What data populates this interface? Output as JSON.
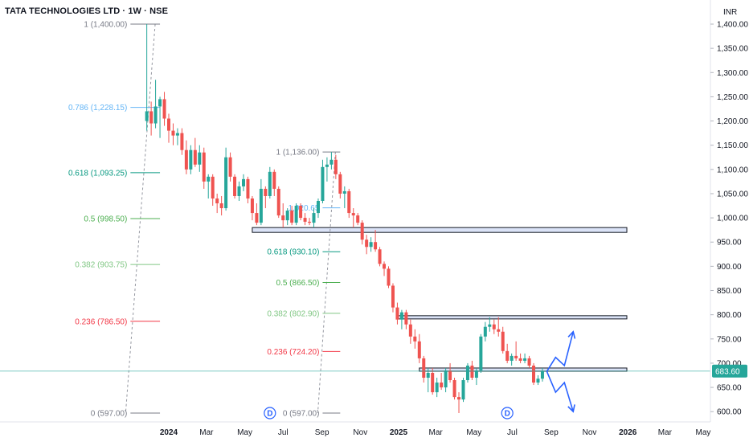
{
  "header": {
    "title": "TATA TECHNOLOGIES LTD · 1W · NSE",
    "currency": "INR"
  },
  "colors": {
    "up": "#26a69a",
    "down": "#ef5350",
    "fib_0786": "#64b5f6",
    "fib_0618": "#089981",
    "fib_05": "#4caf50",
    "fib_0382": "#81c784",
    "fib_0236": "#f23645",
    "fib_0": "#787b86",
    "zone_fill": "#dbe3f7",
    "zone_border": "#131722",
    "arrow": "#2962ff",
    "last_price_line": "#26a69a"
  },
  "chart_data": {
    "type": "candlestick",
    "yaxis": {
      "min": 590,
      "max": 1450,
      "ticks": [
        "1,400.00",
        "1,350.00",
        "1,300.00",
        "1,250.00",
        "1,200.00",
        "1,150.00",
        "1,100.00",
        "1,050.00",
        "1,000.00",
        "950.00",
        "900.00",
        "850.00",
        "800.00",
        "750.00",
        "700.00",
        "650.00",
        "600.00"
      ]
    },
    "xaxis": {
      "ticks": [
        {
          "label": "2024",
          "date": "2024-01-01",
          "bold": true
        },
        {
          "label": "Mar",
          "date": "2024-03-01"
        },
        {
          "label": "May",
          "date": "2024-05-01"
        },
        {
          "label": "Jul",
          "date": "2024-07-01"
        },
        {
          "label": "Sep",
          "date": "2024-09-01"
        },
        {
          "label": "Nov",
          "date": "2024-11-01"
        },
        {
          "label": "2025",
          "date": "2025-01-01",
          "bold": true
        },
        {
          "label": "Mar",
          "date": "2025-03-01"
        },
        {
          "label": "May",
          "date": "2025-05-01"
        },
        {
          "label": "Jul",
          "date": "2025-07-01"
        },
        {
          "label": "Sep",
          "date": "2025-09-01"
        },
        {
          "label": "Nov",
          "date": "2025-11-01"
        },
        {
          "label": "2026",
          "date": "2026-01-01",
          "bold": true
        },
        {
          "label": "Mar",
          "date": "2026-03-01"
        },
        {
          "label": "May",
          "date": "2026-05-01"
        }
      ]
    },
    "last_price": 683.6,
    "candles": [
      {
        "d": "2023-11-27",
        "o": 1200,
        "h": 1400,
        "l": 1180,
        "c": 1220
      },
      {
        "d": "2023-12-04",
        "o": 1220,
        "h": 1240,
        "l": 1170,
        "c": 1195
      },
      {
        "d": "2023-12-11",
        "o": 1195,
        "h": 1285,
        "l": 1185,
        "c": 1230
      },
      {
        "d": "2023-12-18",
        "o": 1230,
        "h": 1250,
        "l": 1165,
        "c": 1245
      },
      {
        "d": "2023-12-25",
        "o": 1245,
        "h": 1260,
        "l": 1190,
        "c": 1205
      },
      {
        "d": "2024-01-01",
        "o": 1205,
        "h": 1215,
        "l": 1155,
        "c": 1180
      },
      {
        "d": "2024-01-08",
        "o": 1180,
        "h": 1195,
        "l": 1150,
        "c": 1170
      },
      {
        "d": "2024-01-15",
        "o": 1170,
        "h": 1185,
        "l": 1150,
        "c": 1175
      },
      {
        "d": "2024-01-22",
        "o": 1175,
        "h": 1185,
        "l": 1130,
        "c": 1140
      },
      {
        "d": "2024-01-29",
        "o": 1140,
        "h": 1160,
        "l": 1090,
        "c": 1100
      },
      {
        "d": "2024-02-05",
        "o": 1100,
        "h": 1150,
        "l": 1090,
        "c": 1140
      },
      {
        "d": "2024-02-12",
        "o": 1140,
        "h": 1165,
        "l": 1105,
        "c": 1110
      },
      {
        "d": "2024-02-19",
        "o": 1110,
        "h": 1150,
        "l": 1095,
        "c": 1135
      },
      {
        "d": "2024-02-26",
        "o": 1135,
        "h": 1145,
        "l": 1060,
        "c": 1075
      },
      {
        "d": "2024-03-04",
        "o": 1075,
        "h": 1090,
        "l": 1040,
        "c": 1085
      },
      {
        "d": "2024-03-11",
        "o": 1085,
        "h": 1090,
        "l": 1025,
        "c": 1040
      },
      {
        "d": "2024-03-18",
        "o": 1040,
        "h": 1050,
        "l": 1010,
        "c": 1030
      },
      {
        "d": "2024-03-25",
        "o": 1030,
        "h": 1045,
        "l": 1005,
        "c": 1020
      },
      {
        "d": "2024-04-01",
        "o": 1020,
        "h": 1145,
        "l": 1015,
        "c": 1125
      },
      {
        "d": "2024-04-08",
        "o": 1125,
        "h": 1135,
        "l": 1075,
        "c": 1085
      },
      {
        "d": "2024-04-15",
        "o": 1085,
        "h": 1090,
        "l": 1040,
        "c": 1045
      },
      {
        "d": "2024-04-22",
        "o": 1045,
        "h": 1075,
        "l": 1035,
        "c": 1065
      },
      {
        "d": "2024-04-29",
        "o": 1065,
        "h": 1090,
        "l": 1055,
        "c": 1080
      },
      {
        "d": "2024-05-06",
        "o": 1080,
        "h": 1085,
        "l": 1030,
        "c": 1040
      },
      {
        "d": "2024-05-13",
        "o": 1040,
        "h": 1045,
        "l": 995,
        "c": 1010
      },
      {
        "d": "2024-05-20",
        "o": 1010,
        "h": 1030,
        "l": 985,
        "c": 990
      },
      {
        "d": "2024-05-27",
        "o": 990,
        "h": 1080,
        "l": 985,
        "c": 1060
      },
      {
        "d": "2024-06-03",
        "o": 1060,
        "h": 1065,
        "l": 1020,
        "c": 1045
      },
      {
        "d": "2024-06-10",
        "o": 1045,
        "h": 1105,
        "l": 1040,
        "c": 1095
      },
      {
        "d": "2024-06-17",
        "o": 1095,
        "h": 1100,
        "l": 1045,
        "c": 1060
      },
      {
        "d": "2024-06-24",
        "o": 1060,
        "h": 1065,
        "l": 1000,
        "c": 1005
      },
      {
        "d": "2024-07-01",
        "o": 1005,
        "h": 1030,
        "l": 980,
        "c": 995
      },
      {
        "d": "2024-07-08",
        "o": 995,
        "h": 1020,
        "l": 985,
        "c": 1015
      },
      {
        "d": "2024-07-15",
        "o": 1015,
        "h": 1025,
        "l": 985,
        "c": 990
      },
      {
        "d": "2024-07-22",
        "o": 990,
        "h": 1030,
        "l": 985,
        "c": 1025
      },
      {
        "d": "2024-07-29",
        "o": 1025,
        "h": 1030,
        "l": 995,
        "c": 1000
      },
      {
        "d": "2024-08-05",
        "o": 1000,
        "h": 1010,
        "l": 985,
        "c": 992
      },
      {
        "d": "2024-08-12",
        "o": 992,
        "h": 1000,
        "l": 985,
        "c": 990
      },
      {
        "d": "2024-08-19",
        "o": 990,
        "h": 1020,
        "l": 980,
        "c": 1010
      },
      {
        "d": "2024-08-26",
        "o": 1010,
        "h": 1040,
        "l": 1000,
        "c": 1035
      },
      {
        "d": "2024-09-02",
        "o": 1035,
        "h": 1120,
        "l": 1030,
        "c": 1105
      },
      {
        "d": "2024-09-09",
        "o": 1105,
        "h": 1125,
        "l": 1075,
        "c": 1110
      },
      {
        "d": "2024-09-16",
        "o": 1110,
        "h": 1136,
        "l": 1100,
        "c": 1120
      },
      {
        "d": "2024-09-23",
        "o": 1120,
        "h": 1130,
        "l": 1080,
        "c": 1090
      },
      {
        "d": "2024-09-30",
        "o": 1090,
        "h": 1095,
        "l": 1040,
        "c": 1050
      },
      {
        "d": "2024-10-07",
        "o": 1050,
        "h": 1065,
        "l": 1020,
        "c": 1055
      },
      {
        "d": "2024-10-14",
        "o": 1055,
        "h": 1060,
        "l": 1000,
        "c": 1010
      },
      {
        "d": "2024-10-21",
        "o": 1010,
        "h": 1020,
        "l": 980,
        "c": 1005
      },
      {
        "d": "2024-10-28",
        "o": 1005,
        "h": 1010,
        "l": 985,
        "c": 990
      },
      {
        "d": "2024-11-04",
        "o": 990,
        "h": 995,
        "l": 945,
        "c": 955
      },
      {
        "d": "2024-11-11",
        "o": 955,
        "h": 965,
        "l": 925,
        "c": 940
      },
      {
        "d": "2024-11-18",
        "o": 940,
        "h": 960,
        "l": 930,
        "c": 950
      },
      {
        "d": "2024-11-25",
        "o": 950,
        "h": 975,
        "l": 930,
        "c": 935
      },
      {
        "d": "2024-12-02",
        "o": 935,
        "h": 940,
        "l": 900,
        "c": 905
      },
      {
        "d": "2024-12-09",
        "o": 905,
        "h": 910,
        "l": 880,
        "c": 895
      },
      {
        "d": "2024-12-16",
        "o": 895,
        "h": 900,
        "l": 855,
        "c": 860
      },
      {
        "d": "2024-12-23",
        "o": 860,
        "h": 865,
        "l": 805,
        "c": 815
      },
      {
        "d": "2024-12-30",
        "o": 815,
        "h": 825,
        "l": 780,
        "c": 790
      },
      {
        "d": "2025-01-06",
        "o": 790,
        "h": 810,
        "l": 770,
        "c": 805
      },
      {
        "d": "2025-01-13",
        "o": 805,
        "h": 810,
        "l": 770,
        "c": 780
      },
      {
        "d": "2025-01-20",
        "o": 780,
        "h": 790,
        "l": 740,
        "c": 755
      },
      {
        "d": "2025-01-27",
        "o": 755,
        "h": 770,
        "l": 730,
        "c": 745
      },
      {
        "d": "2025-02-03",
        "o": 745,
        "h": 760,
        "l": 700,
        "c": 710
      },
      {
        "d": "2025-02-10",
        "o": 710,
        "h": 715,
        "l": 660,
        "c": 670
      },
      {
        "d": "2025-02-17",
        "o": 670,
        "h": 690,
        "l": 640,
        "c": 680
      },
      {
        "d": "2025-02-24",
        "o": 680,
        "h": 690,
        "l": 635,
        "c": 640
      },
      {
        "d": "2025-03-03",
        "o": 640,
        "h": 670,
        "l": 630,
        "c": 660
      },
      {
        "d": "2025-03-10",
        "o": 660,
        "h": 680,
        "l": 645,
        "c": 650
      },
      {
        "d": "2025-03-17",
        "o": 650,
        "h": 690,
        "l": 640,
        "c": 685
      },
      {
        "d": "2025-03-24",
        "o": 685,
        "h": 700,
        "l": 660,
        "c": 665
      },
      {
        "d": "2025-03-31",
        "o": 665,
        "h": 670,
        "l": 625,
        "c": 630
      },
      {
        "d": "2025-04-07",
        "o": 630,
        "h": 640,
        "l": 597,
        "c": 625
      },
      {
        "d": "2025-04-14",
        "o": 625,
        "h": 670,
        "l": 620,
        "c": 665
      },
      {
        "d": "2025-04-21",
        "o": 665,
        "h": 700,
        "l": 660,
        "c": 695
      },
      {
        "d": "2025-04-28",
        "o": 695,
        "h": 705,
        "l": 665,
        "c": 670
      },
      {
        "d": "2025-05-05",
        "o": 670,
        "h": 690,
        "l": 655,
        "c": 685
      },
      {
        "d": "2025-05-12",
        "o": 685,
        "h": 760,
        "l": 680,
        "c": 755
      },
      {
        "d": "2025-05-19",
        "o": 755,
        "h": 785,
        "l": 745,
        "c": 775
      },
      {
        "d": "2025-05-26",
        "o": 775,
        "h": 795,
        "l": 765,
        "c": 780
      },
      {
        "d": "2025-06-02",
        "o": 780,
        "h": 790,
        "l": 760,
        "c": 770
      },
      {
        "d": "2025-06-09",
        "o": 770,
        "h": 795,
        "l": 755,
        "c": 765
      },
      {
        "d": "2025-06-16",
        "o": 765,
        "h": 775,
        "l": 720,
        "c": 725
      },
      {
        "d": "2025-06-23",
        "o": 725,
        "h": 740,
        "l": 700,
        "c": 705
      },
      {
        "d": "2025-06-30",
        "o": 705,
        "h": 720,
        "l": 695,
        "c": 715
      },
      {
        "d": "2025-07-07",
        "o": 715,
        "h": 745,
        "l": 705,
        "c": 710
      },
      {
        "d": "2025-07-14",
        "o": 710,
        "h": 720,
        "l": 700,
        "c": 705
      },
      {
        "d": "2025-07-21",
        "o": 705,
        "h": 720,
        "l": 700,
        "c": 710
      },
      {
        "d": "2025-07-28",
        "o": 710,
        "h": 715,
        "l": 690,
        "c": 695
      },
      {
        "d": "2025-08-04",
        "o": 695,
        "h": 700,
        "l": 655,
        "c": 660
      },
      {
        "d": "2025-08-11",
        "o": 660,
        "h": 675,
        "l": 655,
        "c": 668
      },
      {
        "d": "2025-08-18",
        "o": 668,
        "h": 690,
        "l": 662,
        "c": 683.6
      }
    ],
    "fib_primary": {
      "x_start": "2023-11-01",
      "x_end": "2023-12-18",
      "levels": [
        {
          "text": "1 (1,400.00)",
          "price": 1400.0,
          "color": "fib_0"
        },
        {
          "text": "0.786 (1,228.15)",
          "price": 1228.15,
          "color": "fib_0786"
        },
        {
          "text": "0.618 (1,093.25)",
          "price": 1093.25,
          "color": "fib_0618"
        },
        {
          "text": "0.5 (998.50)",
          "price": 998.5,
          "color": "fib_05"
        },
        {
          "text": "0.382 (903.75)",
          "price": 903.75,
          "color": "fib_0382"
        },
        {
          "text": "0.236 (786.50)",
          "price": 786.5,
          "color": "fib_0236"
        },
        {
          "text": "0 (597.00)",
          "price": 597.0,
          "color": "fib_0"
        }
      ]
    },
    "fib_secondary": {
      "x_start": "2024-09-02",
      "x_end": "2024-09-30",
      "levels": [
        {
          "text": "1 (1,136.00)",
          "price": 1136.0,
          "color": "fib_0"
        },
        {
          "text": "1,020.65",
          "price": 1020.65,
          "color": "fib_0786"
        },
        {
          "text": "0.618 (930.10)",
          "price": 930.1,
          "color": "fib_0618"
        },
        {
          "text": "0.5 (866.50)",
          "price": 866.5,
          "color": "fib_05"
        },
        {
          "text": "0.382 (802.90)",
          "price": 802.9,
          "color": "fib_0382"
        },
        {
          "text": "0.236 (724.20)",
          "price": 724.2,
          "color": "fib_0236"
        },
        {
          "text": "0 (597.00)",
          "price": 597.0,
          "color": "fib_0"
        }
      ]
    },
    "zones": [
      {
        "start": "2024-05-13",
        "end": "2025-12-31",
        "top": 980,
        "bottom": 970
      },
      {
        "start": "2024-12-30",
        "end": "2025-12-31",
        "top": 798,
        "bottom": 792
      },
      {
        "start": "2025-02-03",
        "end": "2025-12-31",
        "top": 690,
        "bottom": 685
      }
    ],
    "dividend_markers": [
      {
        "date": "2024-06-10",
        "price": 597,
        "text": "D"
      },
      {
        "date": "2025-06-23",
        "price": 597,
        "text": "D"
      }
    ],
    "projection_paths": [
      [
        {
          "d": "2025-08-25",
          "p": 683
        },
        {
          "d": "2025-09-08",
          "p": 712
        },
        {
          "d": "2025-09-22",
          "p": 695
        },
        {
          "d": "2025-10-06",
          "p": 765
        }
      ],
      [
        {
          "d": "2025-08-25",
          "p": 683
        },
        {
          "d": "2025-09-08",
          "p": 640
        },
        {
          "d": "2025-09-22",
          "p": 660
        },
        {
          "d": "2025-10-06",
          "p": 600
        }
      ]
    ]
  }
}
